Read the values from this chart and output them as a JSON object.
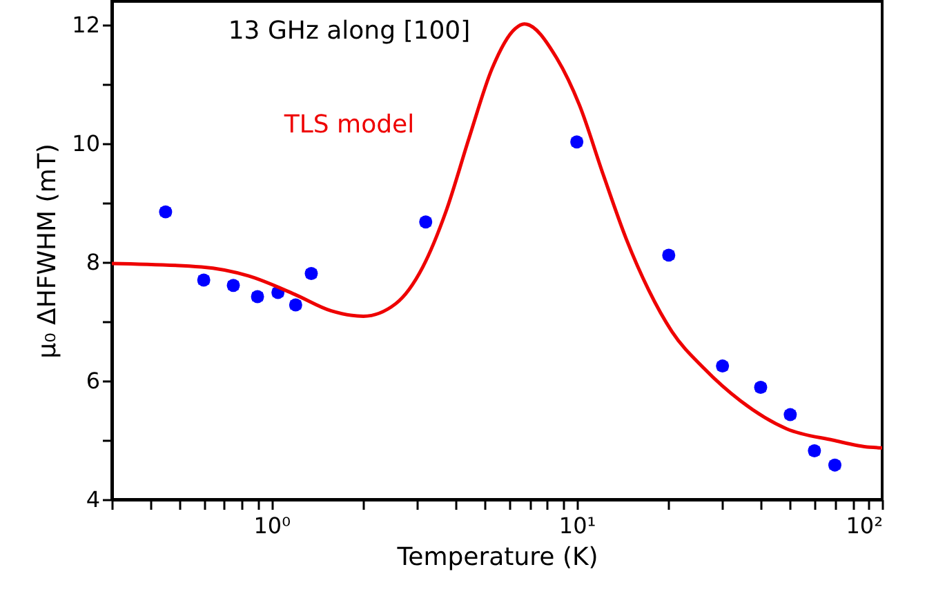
{
  "chart_data": {
    "type": "scatter",
    "xlabel": "Temperature (K)",
    "ylabel": "μ₀ ΔHFWHM (mT)",
    "annotations": [
      "13 GHz along [100]"
    ],
    "log": "x",
    "grid": false,
    "xlim": [
      0.3,
      100
    ],
    "ylim": [
      4,
      12.4
    ],
    "xticks": [
      {
        "value": 0.3,
        "label": null
      },
      {
        "value": 0.4,
        "label": null
      },
      {
        "value": 0.5,
        "label": null
      },
      {
        "value": 0.6,
        "label": null
      },
      {
        "value": 0.7,
        "label": null
      },
      {
        "value": 0.8,
        "label": null
      },
      {
        "value": 0.9,
        "label": null
      },
      {
        "value": 1,
        "label": "10⁰"
      },
      {
        "value": 2,
        "label": null
      },
      {
        "value": 3,
        "label": null
      },
      {
        "value": 4,
        "label": null
      },
      {
        "value": 5,
        "label": null
      },
      {
        "value": 6,
        "label": null
      },
      {
        "value": 7,
        "label": null
      },
      {
        "value": 8,
        "label": null
      },
      {
        "value": 9,
        "label": null
      },
      {
        "value": 10,
        "label": "10¹"
      },
      {
        "value": 20,
        "label": null
      },
      {
        "value": 30,
        "label": null
      },
      {
        "value": 40,
        "label": null
      },
      {
        "value": 50,
        "label": null
      },
      {
        "value": 60,
        "label": null
      },
      {
        "value": 70,
        "label": null
      },
      {
        "value": 80,
        "label": null
      },
      {
        "value": 90,
        "label": null
      },
      {
        "value": 100,
        "label": "10²"
      }
    ],
    "yticks": [
      4,
      {
        "value": 5,
        "label": null
      },
      6,
      {
        "value": 7,
        "label": null
      },
      8,
      {
        "value": 9,
        "label": null
      },
      10,
      {
        "value": 11,
        "label": null
      },
      12
    ],
    "series": [
      {
        "marker": "circle",
        "color": "#0000ff",
        "x": [
          0.45,
          0.6,
          0.75,
          0.9,
          1.05,
          1.2,
          1.35,
          3.2,
          10,
          20,
          30,
          40,
          50,
          60,
          70
        ],
        "values": [
          8.85,
          7.7,
          7.61,
          7.42,
          7.49,
          7.28,
          7.81,
          8.68,
          10.03,
          8.12,
          6.25,
          5.89,
          5.43,
          4.82,
          4.58
        ],
        "errors": [
          0.06,
          0.06,
          0.06,
          0.06,
          0.06,
          0.06,
          0.06,
          0.06,
          0.06,
          0.06,
          0.06,
          0.06,
          0.06,
          0.06,
          0.06
        ]
      },
      {
        "type": "line",
        "name": "TLS model",
        "color": "#ee0000",
        "x": [
          0.3,
          0.59,
          0.84,
          1.19,
          1.57,
          2.0,
          2.55,
          3.13,
          3.73,
          4.44,
          5.28,
          6.28,
          6.73,
          8.6,
          10.2,
          12.2,
          14.5,
          17.2,
          20.5,
          26.1,
          34.4,
          48.7,
          68.9,
          91,
          100
        ],
        "values": [
          7.98,
          7.92,
          7.77,
          7.46,
          7.18,
          7.09,
          7.3,
          7.92,
          8.86,
          10.1,
          11.27,
          11.94,
          12.02,
          11.44,
          10.65,
          9.48,
          8.4,
          7.53,
          6.83,
          6.21,
          5.66,
          5.19,
          5.0,
          4.88,
          4.87
        ]
      }
    ]
  }
}
